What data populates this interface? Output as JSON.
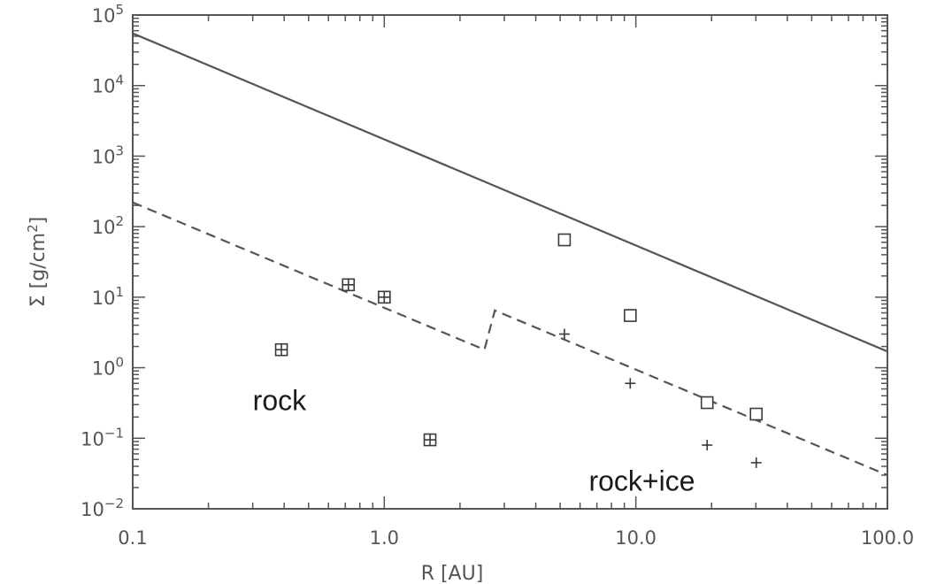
{
  "chart_data": {
    "type": "scatter",
    "xlabel": "R [AU]",
    "ylabel_parts": {
      "main": "Σ [g/cm",
      "sup": "2",
      "end": "]"
    },
    "x_scale": "log",
    "y_scale": "log",
    "xlim": [
      0.1,
      100
    ],
    "ylim": [
      0.01,
      100000
    ],
    "x_ticks": [
      {
        "value": 0.1,
        "label": "0.1"
      },
      {
        "value": 1,
        "label": "1.0"
      },
      {
        "value": 10,
        "label": "10.0"
      },
      {
        "value": 100,
        "label": "100.0"
      }
    ],
    "y_ticks": [
      {
        "value": 0.01,
        "base": "10",
        "exp": "−2"
      },
      {
        "value": 0.1,
        "base": "10",
        "exp": "−1"
      },
      {
        "value": 1,
        "base": "10",
        "exp": "0"
      },
      {
        "value": 10,
        "base": "10",
        "exp": "1"
      },
      {
        "value": 100,
        "base": "10",
        "exp": "2"
      },
      {
        "value": 1000,
        "base": "10",
        "exp": "3"
      },
      {
        "value": 10000,
        "base": "10",
        "exp": "4"
      },
      {
        "value": 100000,
        "base": "10",
        "exp": "5"
      }
    ],
    "grid": false,
    "lines": [
      {
        "style": "solid",
        "color": "#555555",
        "points": [
          [
            0.1,
            55000
          ],
          [
            100,
            1.7
          ]
        ]
      },
      {
        "style": "dashed",
        "color": "#555555",
        "points": [
          [
            0.1,
            220
          ],
          [
            2.5,
            1.8
          ],
          [
            2.75,
            6.5
          ],
          [
            100,
            0.03
          ]
        ]
      }
    ],
    "series": [
      {
        "marker": "square-plus",
        "points": [
          [
            0.39,
            1.8
          ],
          [
            0.72,
            15
          ],
          [
            1.0,
            10
          ],
          [
            1.52,
            0.095
          ]
        ]
      },
      {
        "marker": "square",
        "points": [
          [
            5.2,
            65
          ],
          [
            9.5,
            5.5
          ],
          [
            19.2,
            0.32
          ],
          [
            30.1,
            0.22
          ]
        ]
      },
      {
        "marker": "plus",
        "points": [
          [
            5.2,
            3.0
          ],
          [
            9.5,
            0.6
          ],
          [
            19.2,
            0.08
          ],
          [
            30.1,
            0.045
          ]
        ]
      }
    ],
    "annotations": [
      {
        "text": "rock",
        "x": 0.3,
        "y": 0.25
      },
      {
        "text": "rock+ice",
        "x": 6.5,
        "y": 0.018
      }
    ]
  }
}
